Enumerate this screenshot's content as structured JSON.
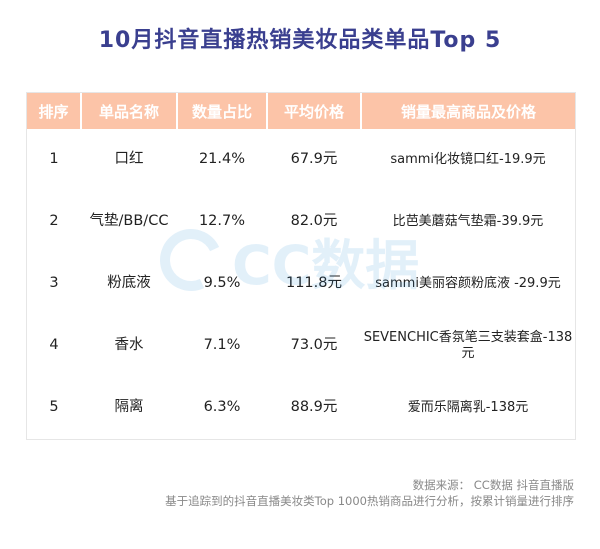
{
  "title": "10月抖音直播热销美妆品类单品Top 5",
  "table": {
    "headers": [
      "排序",
      "单品名称",
      "数量占比",
      "平均价格",
      "销量最高商品及价格"
    ],
    "rows": [
      [
        "1",
        "口红",
        "21.4%",
        "67.9元",
        "sammi化妆镜口红-19.9元"
      ],
      [
        "2",
        "气垫/BB/CC",
        "12.7%",
        "82.0元",
        "比芭美蘑菇气垫霜-39.9元"
      ],
      [
        "3",
        "粉底液",
        "9.5%",
        "111.8元",
        "sammi美丽容颜粉底液 -29.9元"
      ],
      [
        "4",
        "香水",
        "7.1%",
        "73.0元",
        "SEVENCHIC香氛笔三支装套盒-138元"
      ],
      [
        "5",
        "隔离",
        "6.3%",
        "88.9元",
        "爱而乐隔离乳-138元"
      ]
    ]
  },
  "watermark": {
    "text": "CC数据",
    "color": "#2a8fd9",
    "icon": "cc-data-logo-icon"
  },
  "source": {
    "line1": "数据来源： CC数据 抖音直播版",
    "line2": "基于追踪到的抖音直播美妆类Top 1000热销商品进行分析，按累计销量进行排序"
  },
  "colors": {
    "header_bg": "#fcc4a8",
    "title": "#3a3f8f"
  }
}
